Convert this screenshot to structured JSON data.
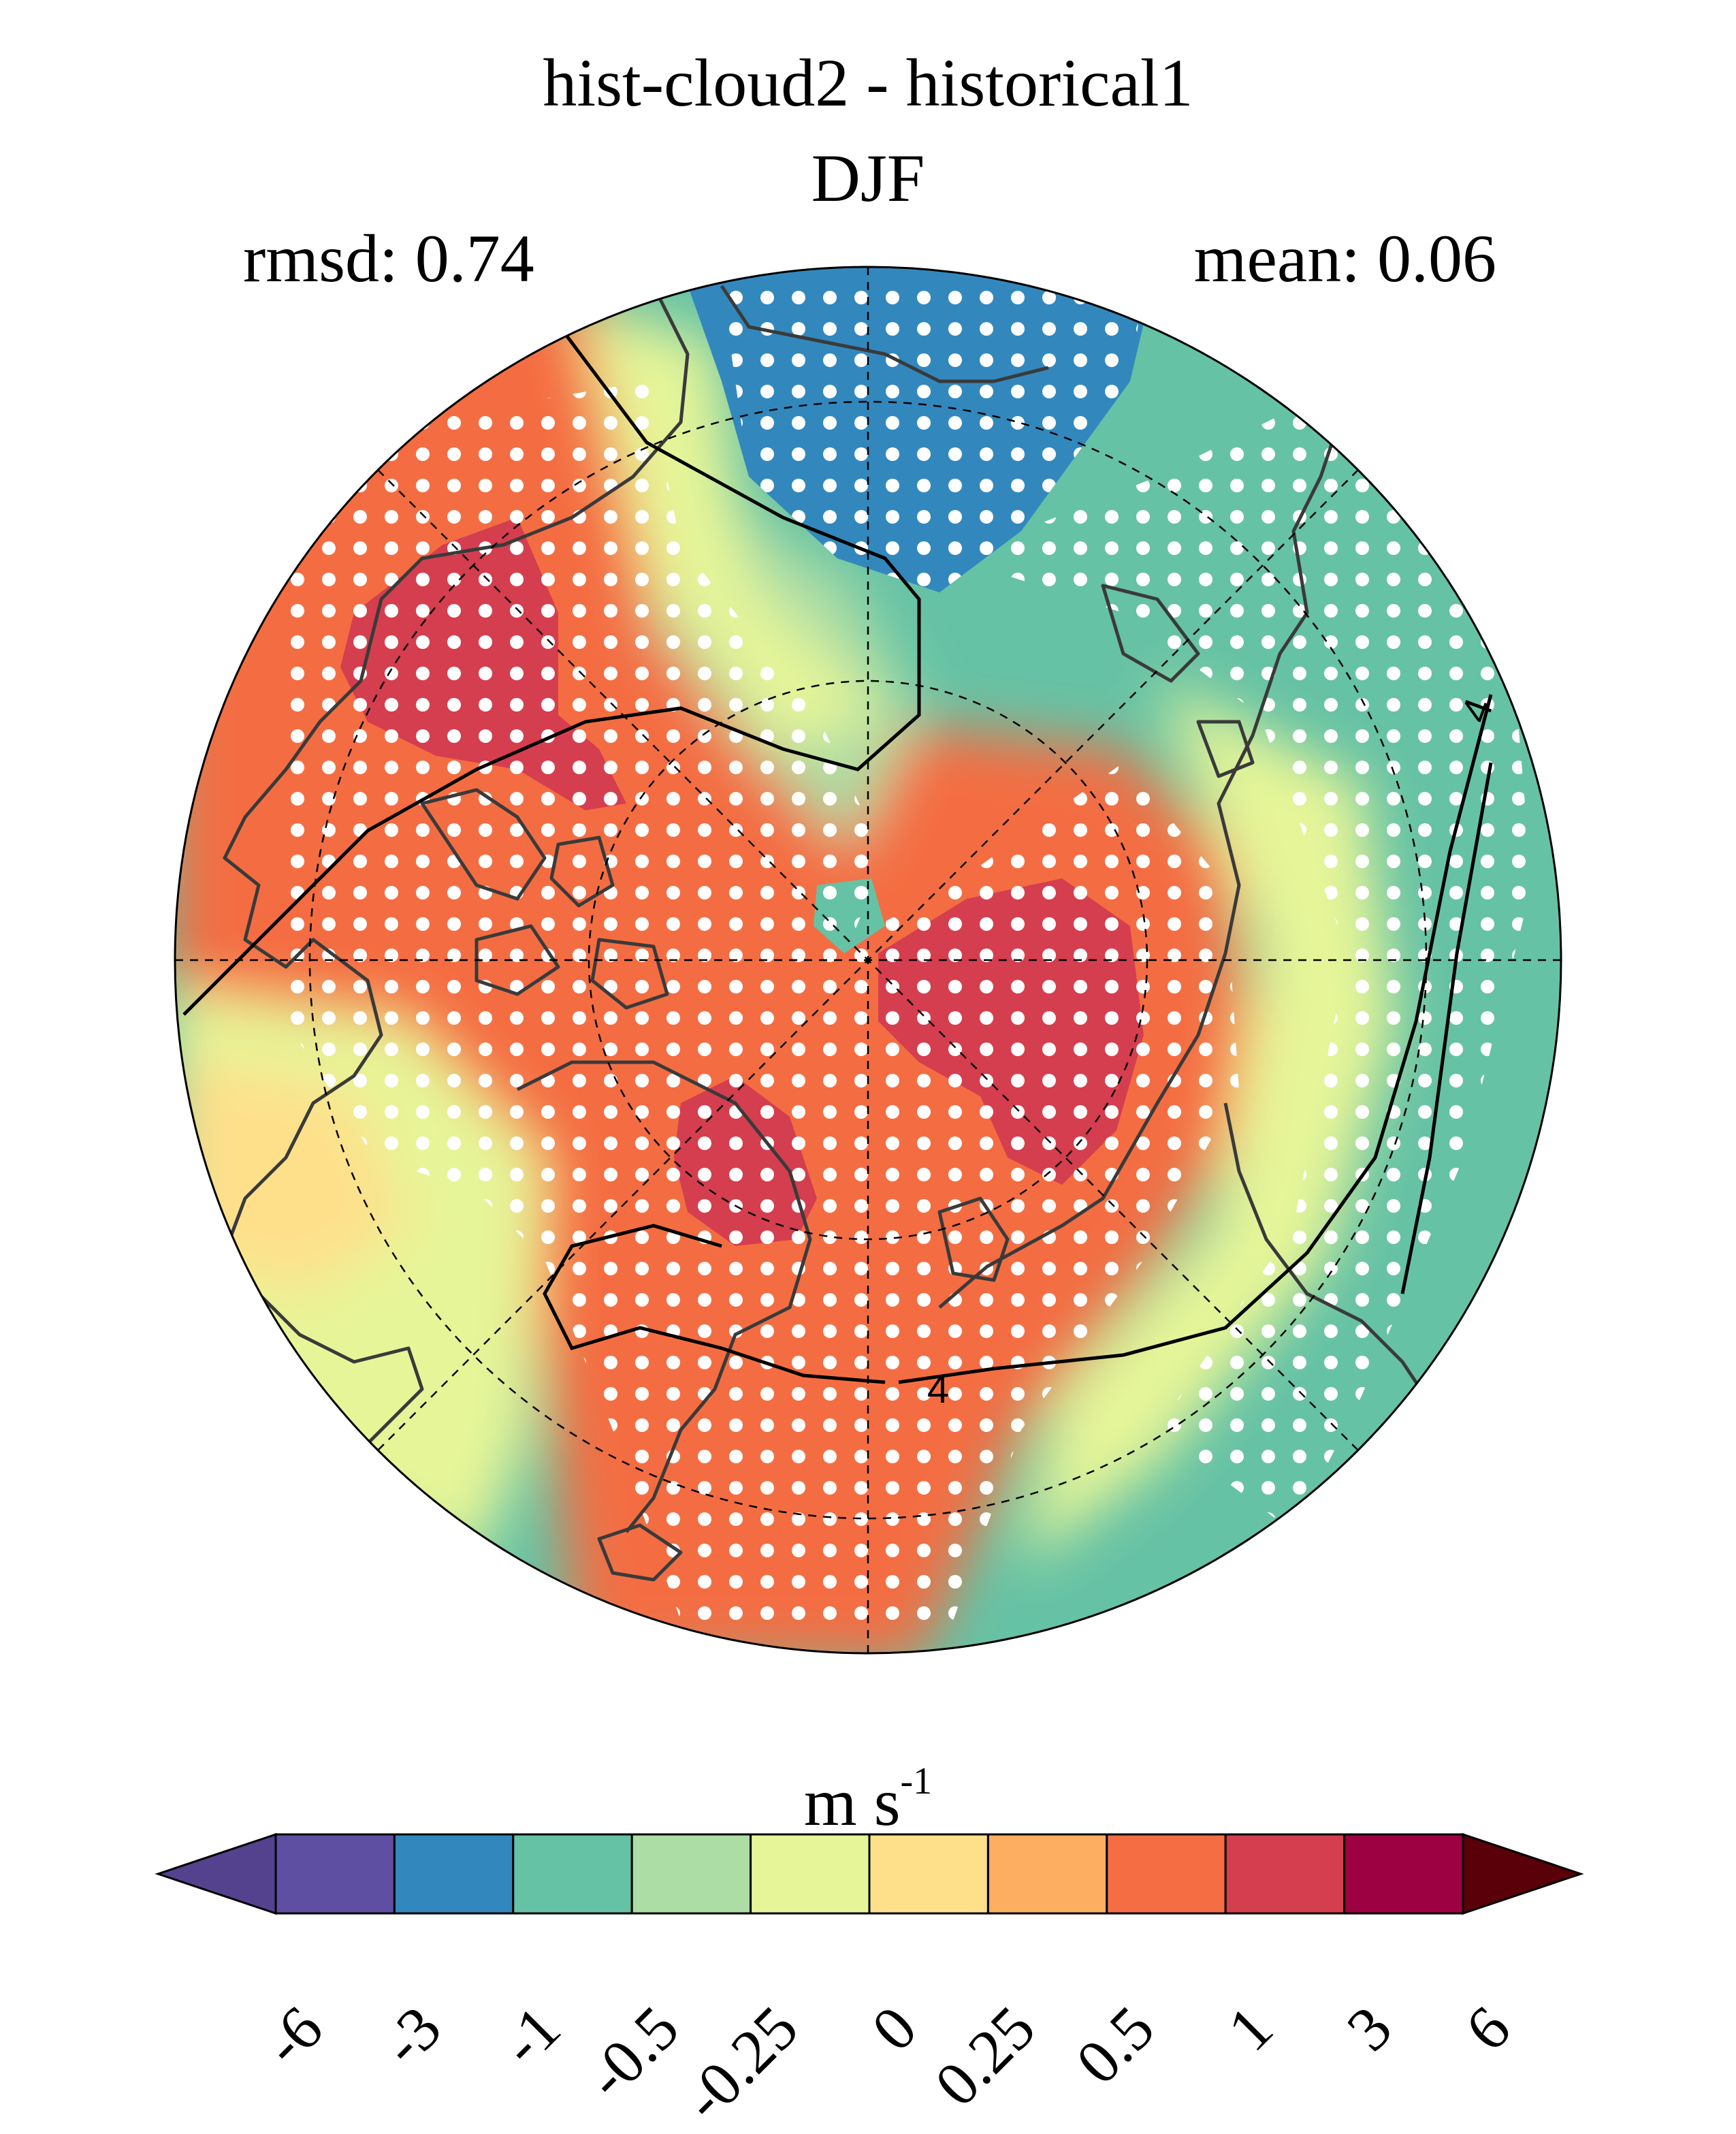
{
  "title": {
    "line1": "hist-cloud2 - historical1",
    "line2": "DJF"
  },
  "stats": {
    "rmsd_label": "rmsd: 0.74",
    "mean_label": "mean: 0.06"
  },
  "map": {
    "projection": "north polar stereographic",
    "contour_label": "4",
    "stippling": "white dots mark significant regions",
    "colors": {
      "neg_6": "#5e4fa2",
      "neg_3": "#3288bd",
      "neg_1": "#66c2a5",
      "neg_05": "#abdda4",
      "neg_025": "#e6f598",
      "pos_0": "#fee08b",
      "pos_025": "#fdae61",
      "pos_05": "#f46d43",
      "pos_1": "#d53e4f",
      "pos_3": "#9e0142",
      "over": "#6a0010",
      "under": "#4b3b8c",
      "coastline": "#3a3a3a"
    }
  },
  "colorbar": {
    "units_base": "m s",
    "units_exp": "-1",
    "ticks": [
      "-6",
      "-3",
      "-1",
      "-0.5",
      "-0.25",
      "0",
      "0.25",
      "0.5",
      "1",
      "3",
      "6"
    ],
    "bins": [
      "#5e4fa2",
      "#3288bd",
      "#66c2a5",
      "#abdda4",
      "#e6f598",
      "#fee08b",
      "#fdae61",
      "#f46d43",
      "#d53e4f",
      "#9e0142"
    ],
    "extend_low": "#54428f",
    "extend_high": "#5a0008"
  }
}
